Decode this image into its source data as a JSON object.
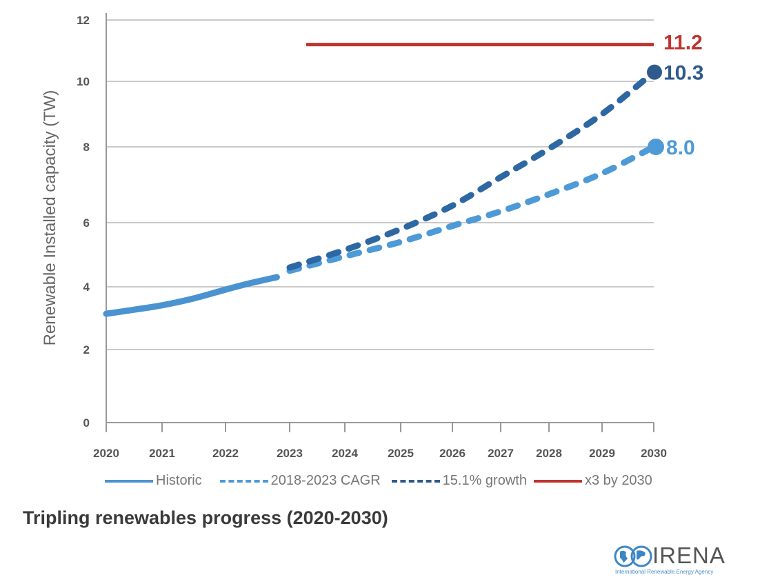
{
  "chart_data": {
    "type": "line",
    "title": "Tripling renewables progress (2020-2030)",
    "xlabel": "",
    "ylabel": "Renewable Installed capacity (TW)",
    "x": [
      2020,
      2021,
      2022,
      2023,
      2024,
      2025,
      2026,
      2027,
      2028,
      2029,
      2030
    ],
    "x_tick_labels": [
      "2020",
      "2021",
      "2022",
      "2023",
      "2024",
      "2025",
      "2026",
      "2027",
      "2028",
      "2029",
      "2030"
    ],
    "y_ticks": [
      0,
      2,
      4,
      6,
      8,
      10,
      12
    ],
    "y_tick_labels": [
      "0",
      "2",
      "4",
      "6",
      "8",
      "10",
      "12"
    ],
    "xlim": [
      2020,
      2030
    ],
    "ylim": [
      0,
      12
    ],
    "grid": "horizontal",
    "legend_position": "bottom",
    "series": [
      {
        "name": "Historic",
        "style": "solid",
        "color": "#4a93d0",
        "x": [
          2020,
          2020.5,
          2021,
          2021.5,
          2022,
          2022.4,
          2022.8
        ],
        "values": [
          3.14,
          3.27,
          3.41,
          3.63,
          3.91,
          4.12,
          4.3
        ]
      },
      {
        "name": "2018-2023 CAGR",
        "style": "dashed",
        "color": "#4d9ad6",
        "x": [
          2023,
          2024,
          2025,
          2026,
          2027,
          2028,
          2029,
          2030
        ],
        "values": [
          4.5,
          4.95,
          5.4,
          5.9,
          6.3,
          6.75,
          7.3,
          8.0
        ],
        "end_label": "8.0"
      },
      {
        "name": "15.1% growth",
        "style": "dashed",
        "color": "#2e68a3",
        "x": [
          2023,
          2024,
          2025,
          2026,
          2027,
          2028,
          2029,
          2030
        ],
        "values": [
          4.6,
          5.15,
          5.8,
          6.45,
          7.2,
          7.95,
          9.0,
          10.3
        ],
        "end_label": "10.3"
      },
      {
        "name": "x3 by 2030",
        "style": "solid",
        "color": "#c0342f",
        "x": [
          2023.3,
          2030
        ],
        "values": [
          11.2,
          11.2
        ],
        "end_label": "11.2"
      }
    ],
    "annotations": [
      "11.2",
      "10.3",
      "8.0"
    ]
  },
  "legend": [
    {
      "label": "Historic",
      "color": "#4a93d0",
      "style": "solid"
    },
    {
      "label": "2018-2023 CAGR",
      "color": "#4d9ad6",
      "style": "dashed"
    },
    {
      "label": "15.1% growth",
      "color": "#2e5a8c",
      "style": "dashed"
    },
    {
      "label": "x3 by 2030",
      "color": "#c0342f",
      "style": "solid"
    }
  ],
  "logo": {
    "name": "IRENA",
    "subtitle": "International Renewable Energy Agency"
  }
}
